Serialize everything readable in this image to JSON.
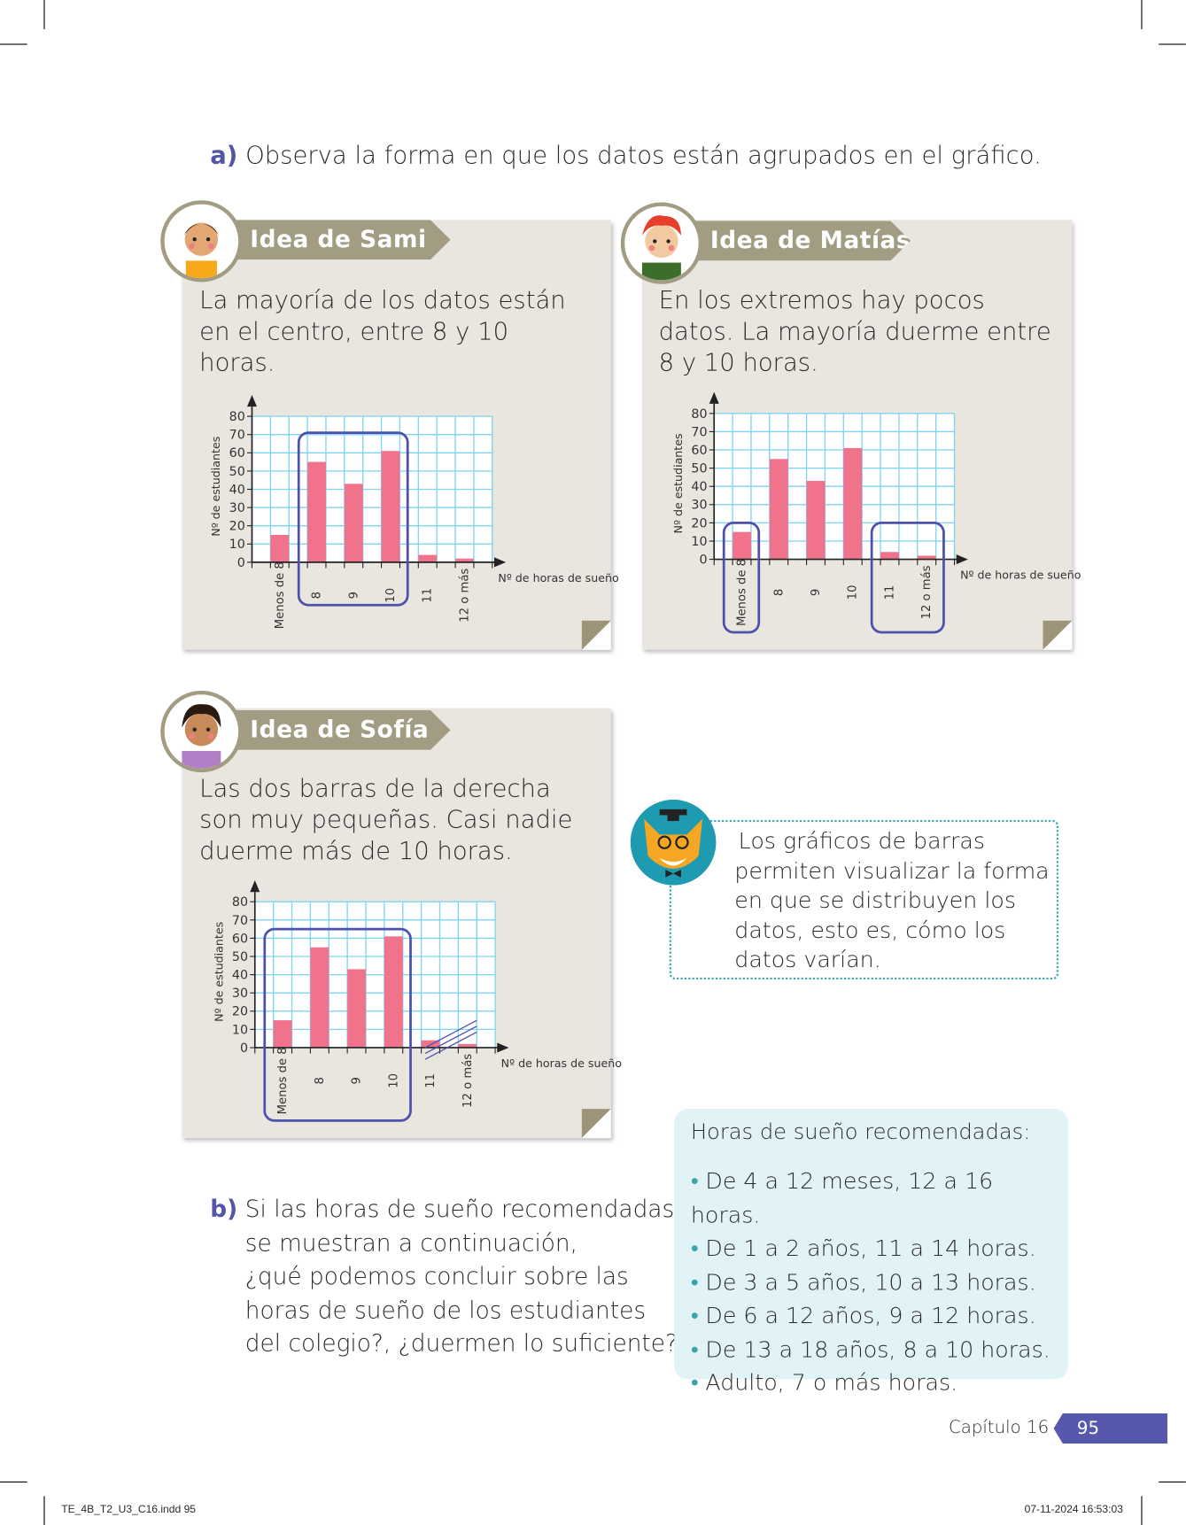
{
  "question_a": {
    "label": "a)",
    "text": "Observa la forma en que los datos están agrupados en el gráfico."
  },
  "ideas": [
    {
      "title": "Idea de Sami",
      "text": "La mayoría de los datos están en el centro, entre 8 y 10 horas."
    },
    {
      "title": "Idea de Matías",
      "text": "En los extremos hay pocos datos. La mayoría duerme entre 8 y 10 horas."
    },
    {
      "title": "Idea de Sofía",
      "text": "Las dos barras de la derecha son muy pequeñas. Casi nadie duerme más de 10 horas."
    }
  ],
  "chart_data": [
    {
      "type": "bar",
      "title": "",
      "xlabel": "Nº de horas de sueño",
      "ylabel": "Nº de estudiantes",
      "categories": [
        "Menos de 8",
        "8",
        "9",
        "10",
        "11",
        "12 o más"
      ],
      "values": [
        15,
        55,
        43,
        61,
        4,
        2
      ],
      "ylim": [
        0,
        80
      ],
      "yticks": [
        0,
        10,
        20,
        30,
        40,
        50,
        60,
        70,
        80
      ],
      "grid": true,
      "highlight_groups": [
        [
          1,
          3
        ]
      ],
      "crossed_out": []
    },
    {
      "type": "bar",
      "title": "",
      "xlabel": "Nº de horas de sueño",
      "ylabel": "Nº de estudiantes",
      "categories": [
        "Menos de 8",
        "8",
        "9",
        "10",
        "11",
        "12 o más"
      ],
      "values": [
        15,
        55,
        43,
        61,
        4,
        2
      ],
      "ylim": [
        0,
        80
      ],
      "yticks": [
        0,
        10,
        20,
        30,
        40,
        50,
        60,
        70,
        80
      ],
      "grid": true,
      "highlight_groups": [
        [
          0,
          0
        ],
        [
          4,
          5
        ]
      ],
      "crossed_out": []
    },
    {
      "type": "bar",
      "title": "",
      "xlabel": "Nº de horas de sueño",
      "ylabel": "Nº de estudiantes",
      "categories": [
        "Menos de 8",
        "8",
        "9",
        "10",
        "11",
        "12 o más"
      ],
      "values": [
        15,
        55,
        43,
        61,
        4,
        2
      ],
      "ylim": [
        0,
        80
      ],
      "yticks": [
        0,
        10,
        20,
        30,
        40,
        50,
        60,
        70,
        80
      ],
      "grid": true,
      "highlight_groups": [
        [
          0,
          3
        ]
      ],
      "crossed_out": [
        4,
        5
      ]
    }
  ],
  "note": {
    "lines": [
      "Los gráficos de barras",
      "permiten visualizar la forma",
      "en que se distribuyen los",
      "datos, esto es, cómo los",
      "datos varían."
    ]
  },
  "question_b": {
    "label": "b)",
    "lines": [
      "Si las horas de sueño recomendadas",
      "se muestran a continuación,",
      "¿qué podemos concluir sobre las",
      "horas de sueño de los estudiantes",
      "del colegio?, ¿duermen lo suficiente?"
    ]
  },
  "recommended": {
    "title": "Horas de sueño recomendadas:",
    "items": [
      "De 4 a 12 meses, 12 a 16 horas.",
      "De 1 a 2 años, 11 a 14 horas.",
      "De 3 a 5 años, 10 a 13 horas.",
      "De 6 a 12 años, 9 a 12 horas.",
      "De 13 a 18 años, 8 a 10 horas.",
      "Adulto, 7 o más horas."
    ]
  },
  "footer": {
    "chapter": "Capítulo 16",
    "page": "95",
    "file": "TE_4B_T2_U3_C16.indd   95",
    "timestamp": "07-11-2024   16:53:03"
  },
  "colors": {
    "bar": "#f0728b",
    "grid": "#7fd3f3",
    "highlight": "#4e51ac",
    "tab": "#a29c83",
    "panel": "#e9e6df",
    "accent": "#5356a8"
  }
}
